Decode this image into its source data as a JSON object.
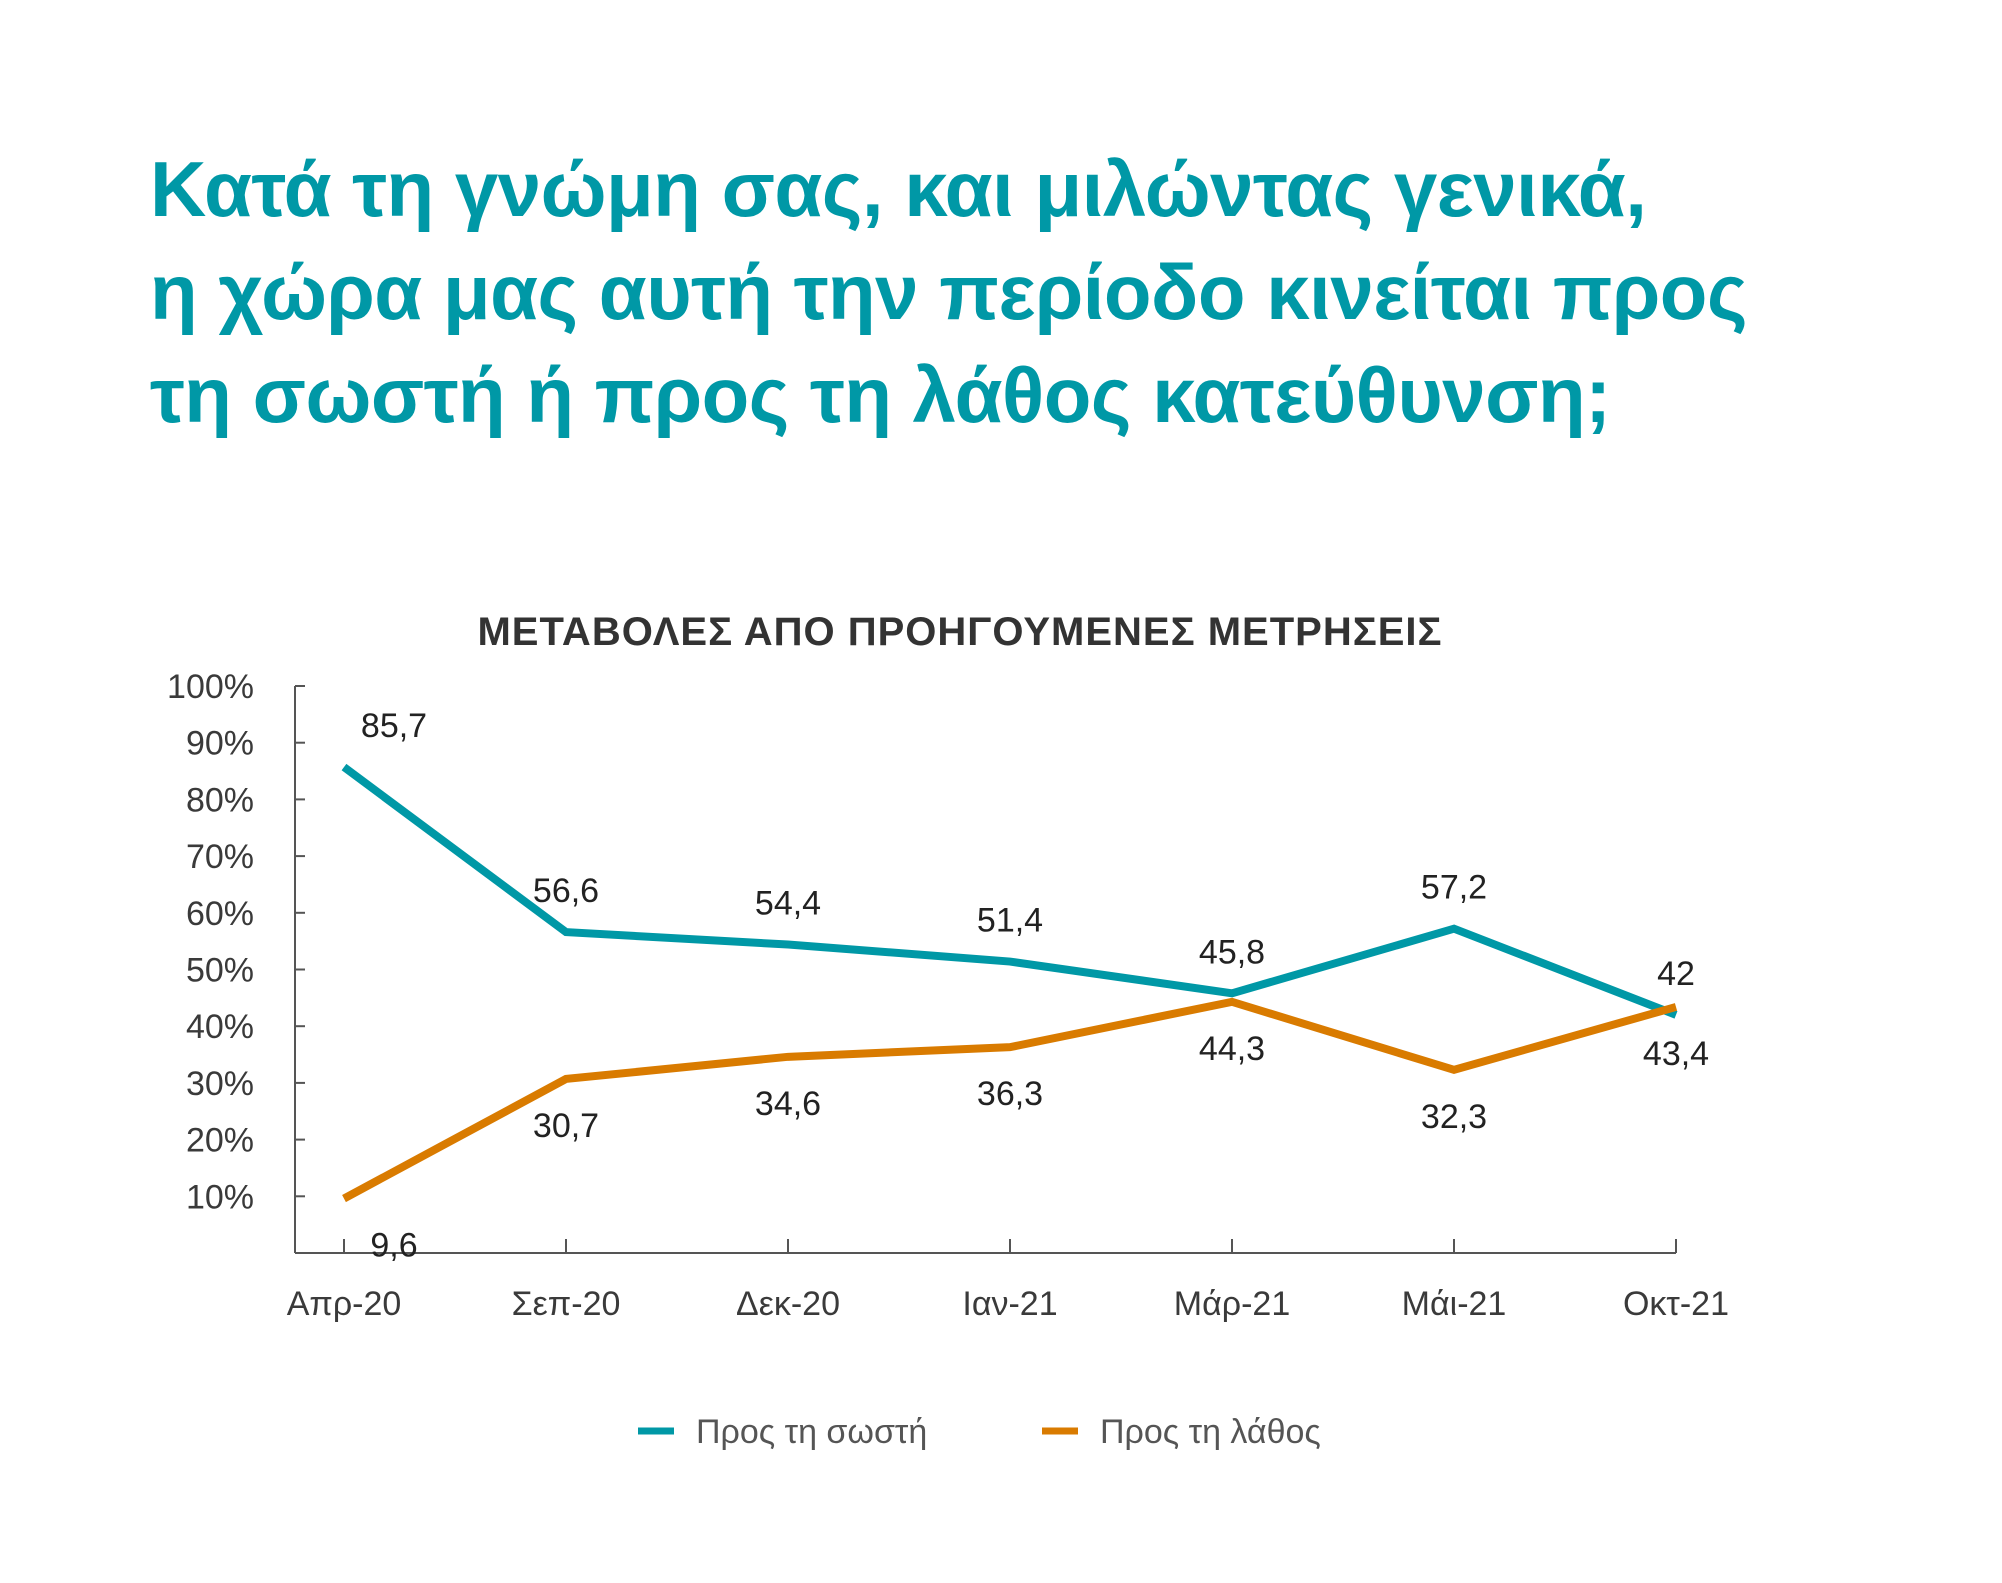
{
  "heading": {
    "lines": [
      "Κατά τη γνώμη σας, και μιλώντας γενικά,",
      "η χώρα μας αυτή την περίοδο κινείται προς",
      "τη σωστή ή προς τη λάθος κατεύθυνση;"
    ],
    "color": "#0098a6"
  },
  "chart_data": {
    "type": "line",
    "title": "ΜΕΤΑΒΟΛΕΣ ΑΠΟ ΠΡΟΗΓΟΥΜΕΝΕΣ ΜΕΤΡΗΣΕΙΣ",
    "categories": [
      "Απρ-20",
      "Σεπ-20",
      "Δεκ-20",
      "Ιαν-21",
      "Μάρ-21",
      "Μάι-21",
      "Οκτ-21"
    ],
    "series": [
      {
        "name": "Προς τη σωστή",
        "color": "#0098a6",
        "values": [
          85.7,
          56.6,
          54.4,
          51.4,
          45.8,
          57.2,
          42
        ],
        "labels": [
          "85,7",
          "56,6",
          "54,4",
          "51,4",
          "45,8",
          "57,2",
          "42"
        ]
      },
      {
        "name": "Προς τη λάθος",
        "color": "#d97b00",
        "values": [
          9.6,
          30.7,
          34.6,
          36.3,
          44.3,
          32.3,
          43.4
        ],
        "labels": [
          "9,6",
          "30,7",
          "34,6",
          "36,3",
          "44,3",
          "32,3",
          "43,4"
        ]
      }
    ],
    "yticks": [
      "10%",
      "20%",
      "30%",
      "40%",
      "50%",
      "60%",
      "70%",
      "80%",
      "90%",
      "100%"
    ],
    "ylim": [
      0,
      100
    ],
    "xlabel": "",
    "ylabel": "",
    "grid": false,
    "legend": "bottom"
  }
}
